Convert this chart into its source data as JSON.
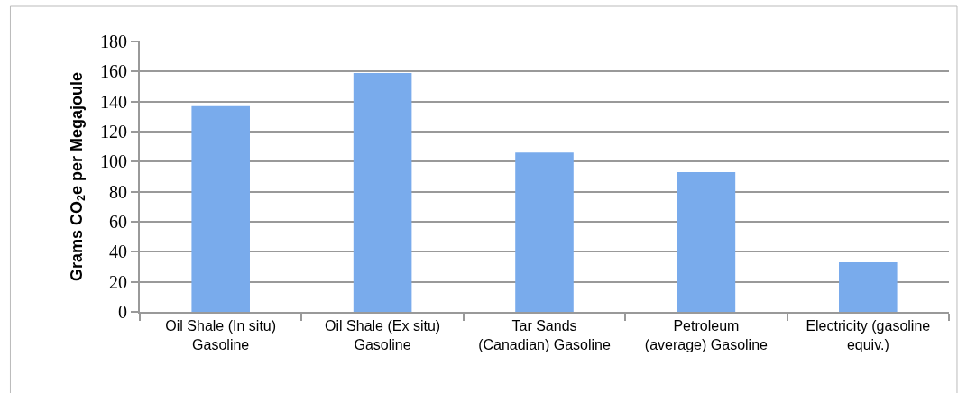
{
  "chart_data": {
    "type": "bar",
    "ylabel": "Grams CO$_{2}$e per Megajoule",
    "categories": [
      "Oil Shale (In situ)\nGasoline",
      "Oil Shale (Ex situ)\nGasoline",
      "Tar Sands\n(Canadian) Gasoline",
      "Petroleum\n(average) Gasoline",
      "Electricity (gasoline\nequiv.)"
    ],
    "values": [
      137,
      159,
      106,
      93,
      33
    ],
    "color": "#79abec",
    "ylim": [
      0,
      180
    ],
    "yticks": [
      0,
      20,
      40,
      60,
      80,
      100,
      120,
      140,
      160,
      180
    ],
    "grid": "y"
  }
}
